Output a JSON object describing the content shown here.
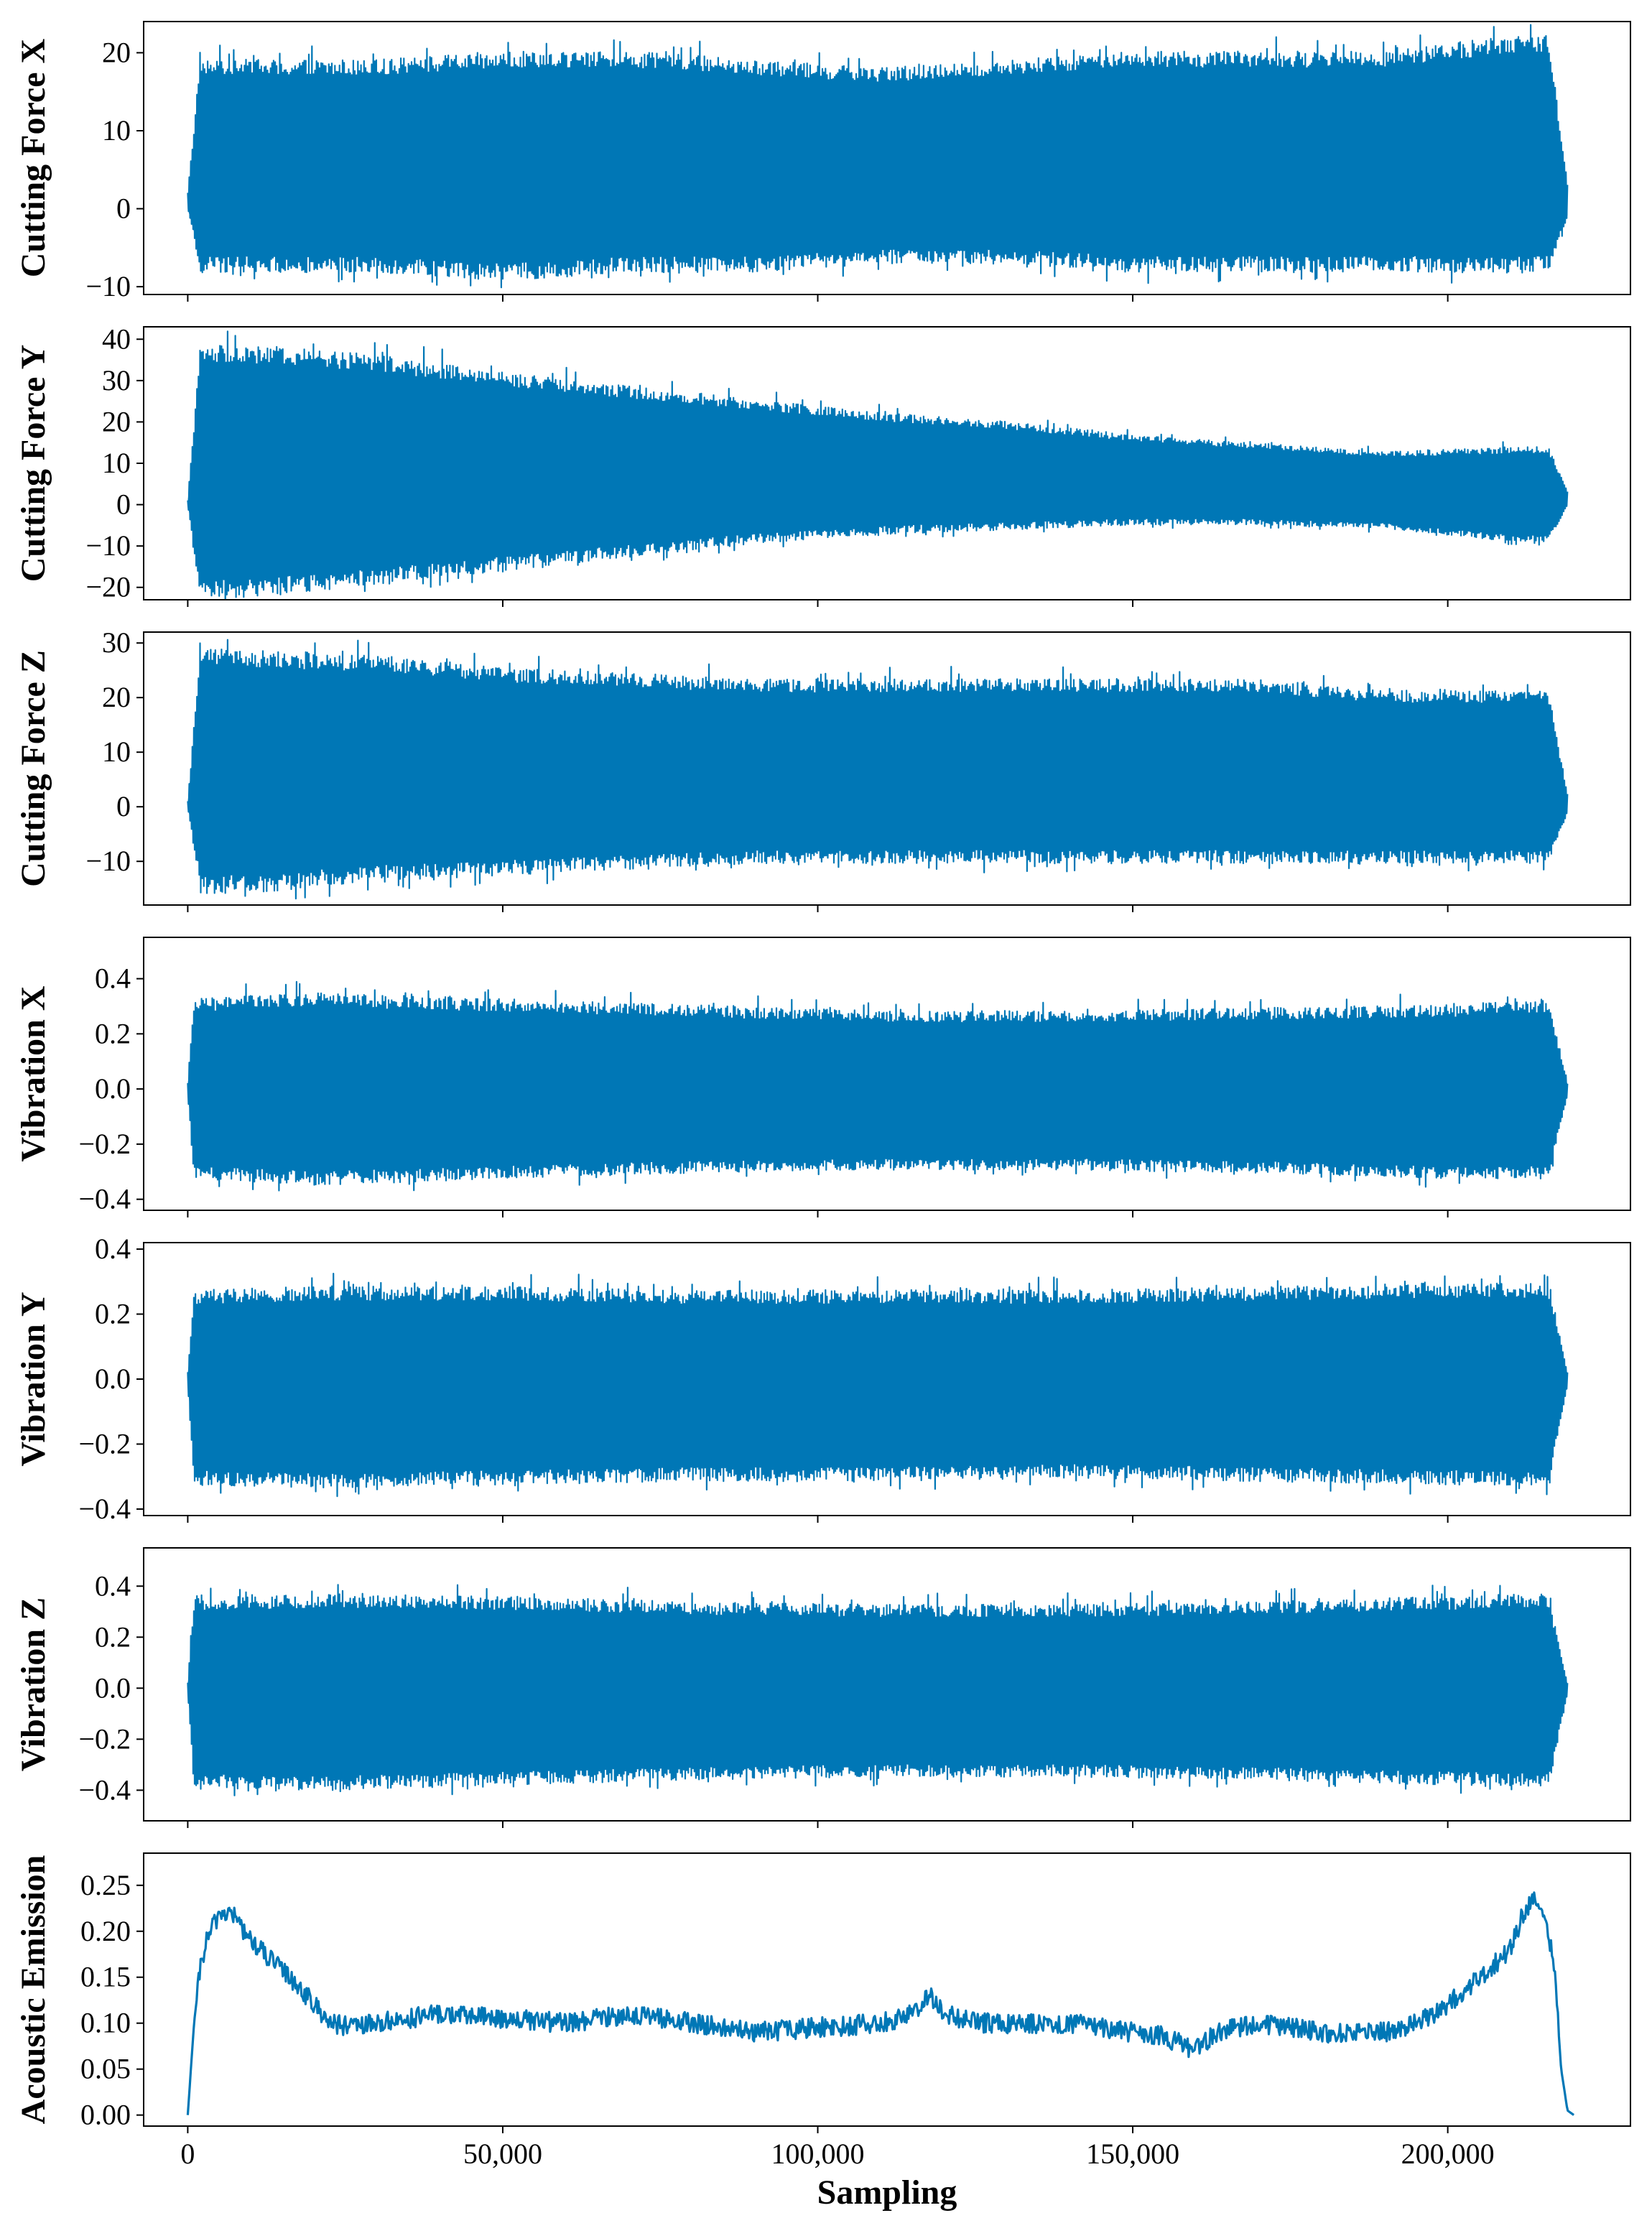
{
  "chart_data": [
    {
      "type": "line",
      "name": "cutting-force-x",
      "ylabel": "Cutting Force X",
      "ylim": [
        -11,
        24
      ],
      "yticks": [
        -10,
        0,
        10,
        20
      ],
      "ytick_labels": [
        "−10",
        "0",
        "10",
        "20"
      ],
      "series": [
        {
          "name": "Cutting Force X",
          "color": "#0077b6",
          "style": "dense",
          "x": [
            0,
            2000,
            10000,
            30000,
            50000,
            70000,
            90000,
            110000,
            130000,
            150000,
            170000,
            190000,
            210000,
            216000,
            219000
          ],
          "upper": [
            2,
            18,
            18,
            18,
            19,
            19,
            18,
            17,
            18,
            19,
            19,
            19,
            21,
            21,
            3
          ],
          "lower": [
            0,
            -7,
            -7,
            -7,
            -8,
            -7,
            -7,
            -6,
            -6,
            -7,
            -7,
            -7,
            -7,
            -7,
            -1
          ]
        }
      ]
    },
    {
      "type": "line",
      "name": "cutting-force-y",
      "ylabel": "Cutting Force Y",
      "ylim": [
        -23,
        43
      ],
      "yticks": [
        -20,
        -10,
        0,
        10,
        20,
        30,
        40
      ],
      "ytick_labels": [
        "−20",
        "−10",
        "0",
        "10",
        "20",
        "30",
        "40"
      ],
      "series": [
        {
          "name": "Cutting Force Y",
          "color": "#0077b6",
          "style": "dense",
          "x": [
            0,
            2000,
            10000,
            30000,
            50000,
            70000,
            90000,
            110000,
            130000,
            150000,
            170000,
            190000,
            210000,
            216000,
            219000
          ],
          "upper": [
            1,
            36,
            36,
            34,
            30,
            27,
            24,
            21,
            19,
            16,
            14,
            12,
            13,
            13,
            3
          ],
          "lower": [
            0,
            -20,
            -20,
            -17,
            -14,
            -11,
            -8,
            -6,
            -5,
            -4,
            -4,
            -5,
            -8,
            -8,
            0
          ]
        }
      ]
    },
    {
      "type": "line",
      "name": "cutting-force-z",
      "ylabel": "Cutting Force Z",
      "ylim": [
        -18,
        32
      ],
      "yticks": [
        -10,
        0,
        10,
        20,
        30
      ],
      "ytick_labels": [
        "−10",
        "0",
        "10",
        "20",
        "30"
      ],
      "series": [
        {
          "name": "Cutting Force Z",
          "color": "#0077b6",
          "style": "dense",
          "x": [
            0,
            2000,
            10000,
            30000,
            50000,
            70000,
            90000,
            110000,
            130000,
            150000,
            170000,
            190000,
            210000,
            216000,
            219000
          ],
          "upper": [
            1,
            27,
            27,
            26,
            24,
            23,
            22,
            22,
            22,
            22,
            22,
            20,
            20,
            20,
            2
          ],
          "lower": [
            0,
            -14,
            -14,
            -12,
            -11,
            -10,
            -9,
            -9,
            -9,
            -9,
            -9,
            -9,
            -9,
            -9,
            -1
          ]
        }
      ]
    },
    {
      "type": "line",
      "name": "vibration-x",
      "ylabel": "Vibration X",
      "ylim": [
        -0.44,
        0.55
      ],
      "yticks": [
        -0.4,
        -0.2,
        0.0,
        0.2,
        0.4
      ],
      "ytick_labels": [
        "−0.4",
        "−0.2",
        "0.0",
        "0.2",
        "0.4"
      ],
      "series": [
        {
          "name": "Vibration X",
          "color": "#0077b6",
          "style": "dense",
          "x": [
            0,
            1000,
            20000,
            50000,
            80000,
            110000,
            140000,
            170000,
            200000,
            216000,
            219000
          ],
          "upper": [
            0.02,
            0.3,
            0.32,
            0.3,
            0.28,
            0.26,
            0.26,
            0.27,
            0.28,
            0.3,
            0.02
          ],
          "lower": [
            -0.02,
            -0.3,
            -0.32,
            -0.3,
            -0.28,
            -0.27,
            -0.27,
            -0.28,
            -0.3,
            -0.3,
            -0.02
          ]
        }
      ]
    },
    {
      "type": "line",
      "name": "vibration-y",
      "ylabel": "Vibration Y",
      "ylim": [
        -0.42,
        0.42
      ],
      "yticks": [
        -0.4,
        -0.2,
        0.0,
        0.2,
        0.4
      ],
      "ytick_labels": [
        "−0.4",
        "−0.2",
        "0.0",
        "0.2",
        "0.4"
      ],
      "series": [
        {
          "name": "Vibration Y",
          "color": "#0077b6",
          "style": "dense",
          "x": [
            0,
            1000,
            20000,
            50000,
            80000,
            110000,
            140000,
            170000,
            200000,
            216000,
            219000
          ],
          "upper": [
            0.02,
            0.25,
            0.26,
            0.26,
            0.25,
            0.25,
            0.25,
            0.26,
            0.27,
            0.27,
            0.02
          ],
          "lower": [
            -0.02,
            -0.3,
            -0.31,
            -0.3,
            -0.29,
            -0.29,
            -0.28,
            -0.29,
            -0.3,
            -0.3,
            -0.02
          ]
        }
      ]
    },
    {
      "type": "line",
      "name": "vibration-z",
      "ylabel": "Vibration Z",
      "ylim": [
        -0.52,
        0.55
      ],
      "yticks": [
        -0.4,
        -0.2,
        0.0,
        0.2,
        0.4
      ],
      "ytick_labels": [
        "−0.4",
        "−0.2",
        "0.0",
        "0.2",
        "0.4"
      ],
      "series": [
        {
          "name": "Vibration Z",
          "color": "#0077b6",
          "style": "dense",
          "x": [
            0,
            1000,
            20000,
            50000,
            80000,
            110000,
            140000,
            170000,
            200000,
            216000,
            219000
          ],
          "upper": [
            0.02,
            0.32,
            0.34,
            0.33,
            0.31,
            0.3,
            0.3,
            0.31,
            0.33,
            0.34,
            0.02
          ],
          "lower": [
            -0.02,
            -0.36,
            -0.37,
            -0.35,
            -0.33,
            -0.32,
            -0.32,
            -0.33,
            -0.35,
            -0.36,
            -0.02
          ]
        }
      ]
    },
    {
      "type": "line",
      "name": "acoustic-emission",
      "ylabel": "Acoustic Emission",
      "xlabel": "Sampling",
      "ylim": [
        -0.012,
        0.285
      ],
      "yticks": [
        0.0,
        0.05,
        0.1,
        0.15,
        0.2,
        0.25
      ],
      "ytick_labels": [
        "0.00",
        "0.05",
        "0.10",
        "0.15",
        "0.20",
        "0.25"
      ],
      "xlim": [
        -7000,
        229000
      ],
      "xticks": [
        0,
        50000,
        100000,
        150000,
        200000
      ],
      "xtick_labels": [
        "0",
        "50,000",
        "100,000",
        "150,000",
        "200,000"
      ],
      "series": [
        {
          "name": "Acoustic Emission",
          "color": "#0077b6",
          "style": "noisy",
          "x": [
            0,
            500,
            1000,
            2000,
            3000,
            5000,
            7000,
            10000,
            13000,
            17000,
            20000,
            23000,
            26000,
            30000,
            35000,
            40000,
            45000,
            50000,
            60000,
            70000,
            80000,
            90000,
            100000,
            110000,
            115000,
            118000,
            120000,
            125000,
            130000,
            140000,
            150000,
            155000,
            160000,
            163000,
            170000,
            180000,
            190000,
            195000,
            200000,
            205000,
            210000,
            212000,
            214000,
            216000,
            217000,
            218000,
            219000,
            220000
          ],
          "y": [
            0.0,
            0.05,
            0.1,
            0.16,
            0.19,
            0.22,
            0.22,
            0.19,
            0.17,
            0.145,
            0.12,
            0.1,
            0.095,
            0.1,
            0.105,
            0.11,
            0.108,
            0.105,
            0.1,
            0.11,
            0.1,
            0.09,
            0.095,
            0.1,
            0.11,
            0.13,
            0.11,
            0.1,
            0.1,
            0.1,
            0.09,
            0.085,
            0.07,
            0.09,
            0.1,
            0.09,
            0.09,
            0.1,
            0.12,
            0.15,
            0.18,
            0.22,
            0.24,
            0.2,
            0.15,
            0.05,
            0.005,
            0.0
          ]
        }
      ]
    }
  ]
}
